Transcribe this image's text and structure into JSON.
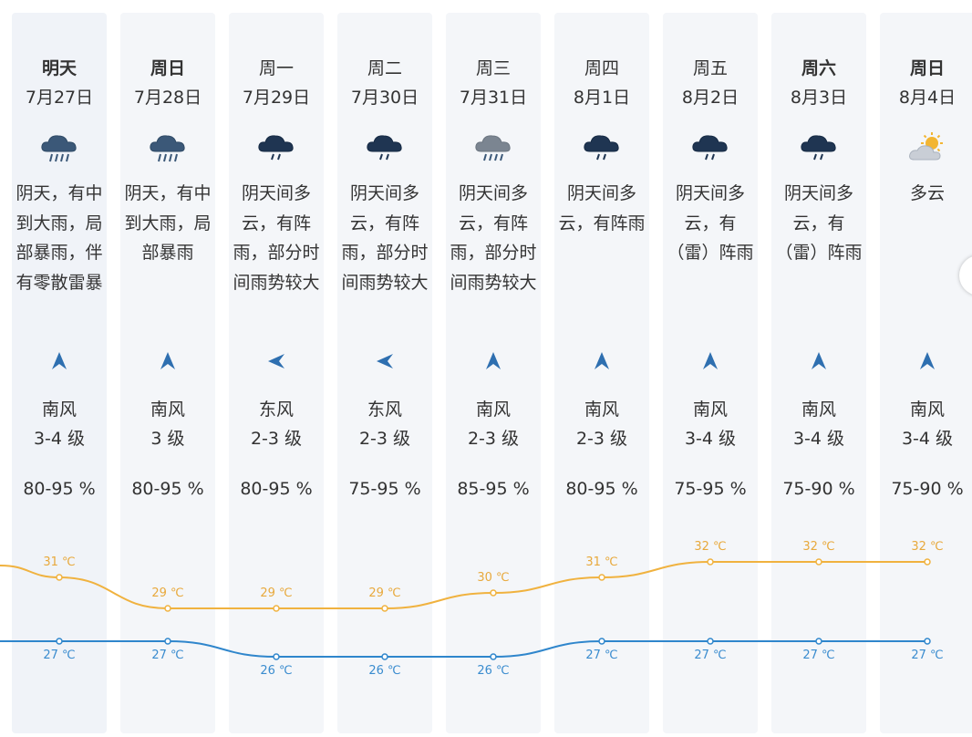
{
  "forecast": [
    {
      "day": "明天",
      "date": "7月27日",
      "icon": "rain-heavy-icon",
      "desc": "阴天，有中到大雨，局部暴雨，伴有零散雷暴",
      "wind_dir": "南风",
      "wind_dir_icon": "arrow-north-icon",
      "wind_level": "3-4 级",
      "humidity": "80-95 %",
      "high": "31 ℃",
      "low": "27 ℃",
      "bold": true
    },
    {
      "day": "周日",
      "date": "7月28日",
      "icon": "rain-heavy-icon",
      "desc": "阴天，有中到大雨，局部暴雨",
      "wind_dir": "南风",
      "wind_dir_icon": "arrow-north-icon",
      "wind_level": "3 级",
      "humidity": "80-95 %",
      "high": "29 ℃",
      "low": "27 ℃",
      "bold": true
    },
    {
      "day": "周一",
      "date": "7月29日",
      "icon": "rain-shower-icon",
      "desc": "阴天间多云，有阵雨，部分时间雨势较大",
      "wind_dir": "东风",
      "wind_dir_icon": "arrow-west-icon",
      "wind_level": "2-3 级",
      "humidity": "80-95 %",
      "high": "29 ℃",
      "low": "26 ℃",
      "bold": false
    },
    {
      "day": "周二",
      "date": "7月30日",
      "icon": "rain-shower-icon",
      "desc": "阴天间多云，有阵雨，部分时间雨势较大",
      "wind_dir": "东风",
      "wind_dir_icon": "arrow-west-icon",
      "wind_level": "2-3 级",
      "humidity": "75-95 %",
      "high": "29 ℃",
      "low": "26 ℃",
      "bold": false
    },
    {
      "day": "周三",
      "date": "7月31日",
      "icon": "rain-gray-icon",
      "desc": "阴天间多云，有阵雨，部分时间雨势较大",
      "wind_dir": "南风",
      "wind_dir_icon": "arrow-north-icon",
      "wind_level": "2-3 级",
      "humidity": "85-95 %",
      "high": "30 ℃",
      "low": "26 ℃",
      "bold": false
    },
    {
      "day": "周四",
      "date": "8月1日",
      "icon": "rain-shower-icon",
      "desc": "阴天间多云，有阵雨",
      "wind_dir": "南风",
      "wind_dir_icon": "arrow-north-icon",
      "wind_level": "2-3 级",
      "humidity": "80-95 %",
      "high": "31 ℃",
      "low": "27 ℃",
      "bold": false
    },
    {
      "day": "周五",
      "date": "8月2日",
      "icon": "rain-shower-icon",
      "desc": "阴天间多云，有（雷）阵雨",
      "wind_dir": "南风",
      "wind_dir_icon": "arrow-north-icon",
      "wind_level": "3-4 级",
      "humidity": "75-95 %",
      "high": "32 ℃",
      "low": "27 ℃",
      "bold": false
    },
    {
      "day": "周六",
      "date": "8月3日",
      "icon": "rain-shower-icon",
      "desc": "阴天间多云，有（雷）阵雨",
      "wind_dir": "南风",
      "wind_dir_icon": "arrow-north-icon",
      "wind_level": "3-4 级",
      "humidity": "75-90 %",
      "high": "32 ℃",
      "low": "27 ℃",
      "bold": true
    },
    {
      "day": "周日",
      "date": "8月4日",
      "icon": "partly-cloudy-icon",
      "desc": "多云",
      "wind_dir": "南风",
      "wind_dir_icon": "arrow-north-icon",
      "wind_level": "3-4 级",
      "humidity": "75-90 %",
      "high": "32 ℃",
      "low": "27 ℃",
      "bold": true
    }
  ],
  "temperature_lines": {
    "high_values": [
      31,
      29,
      29,
      29,
      30,
      31,
      32,
      32,
      32
    ],
    "low_values": [
      27,
      27,
      26,
      26,
      26,
      27,
      27,
      27,
      27
    ],
    "high_color": "#f0b23f",
    "low_color": "#2f86cc",
    "label_high_color": "#e8a93c",
    "label_low_color": "#3a8ccf"
  },
  "scroll_handle": {
    "icon": "scroll-right-handle-icon"
  }
}
